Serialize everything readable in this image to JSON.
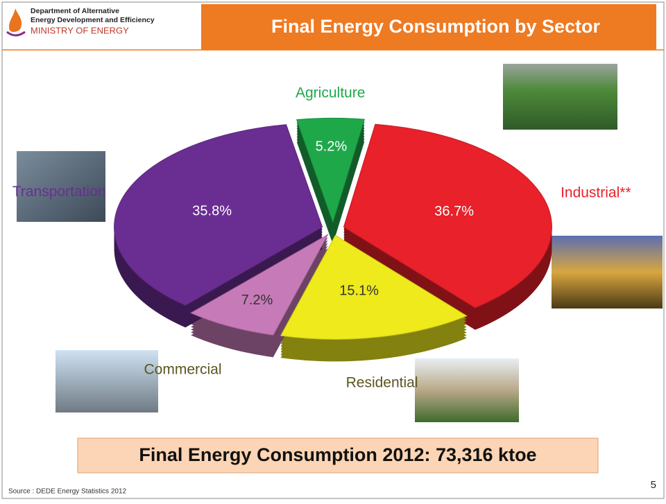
{
  "header": {
    "org_line1": "Department of Alternative",
    "org_line2": "Energy Development and Efficiency",
    "ministry": "MINISTRY OF ENERGY"
  },
  "chart_data": {
    "type": "pie",
    "title": "Final Energy Consumption by Sector",
    "categories": [
      "Agriculture",
      "Industrial**",
      "Residential",
      "Commercial",
      "Transportation"
    ],
    "values": [
      5.2,
      36.7,
      15.1,
      7.2,
      35.8
    ],
    "value_labels": [
      "5.2%",
      "36.7%",
      "15.1%",
      "7.2%",
      "35.8%"
    ],
    "colors": [
      "#1fa84a",
      "#e8212a",
      "#eeea1c",
      "#c77ab8",
      "#6a2e92"
    ]
  },
  "summary": "Final Energy Consumption 2012:  73,316 ktoe",
  "source": "Source  :  DEDE Energy Statistics 2012",
  "page_number": "5"
}
